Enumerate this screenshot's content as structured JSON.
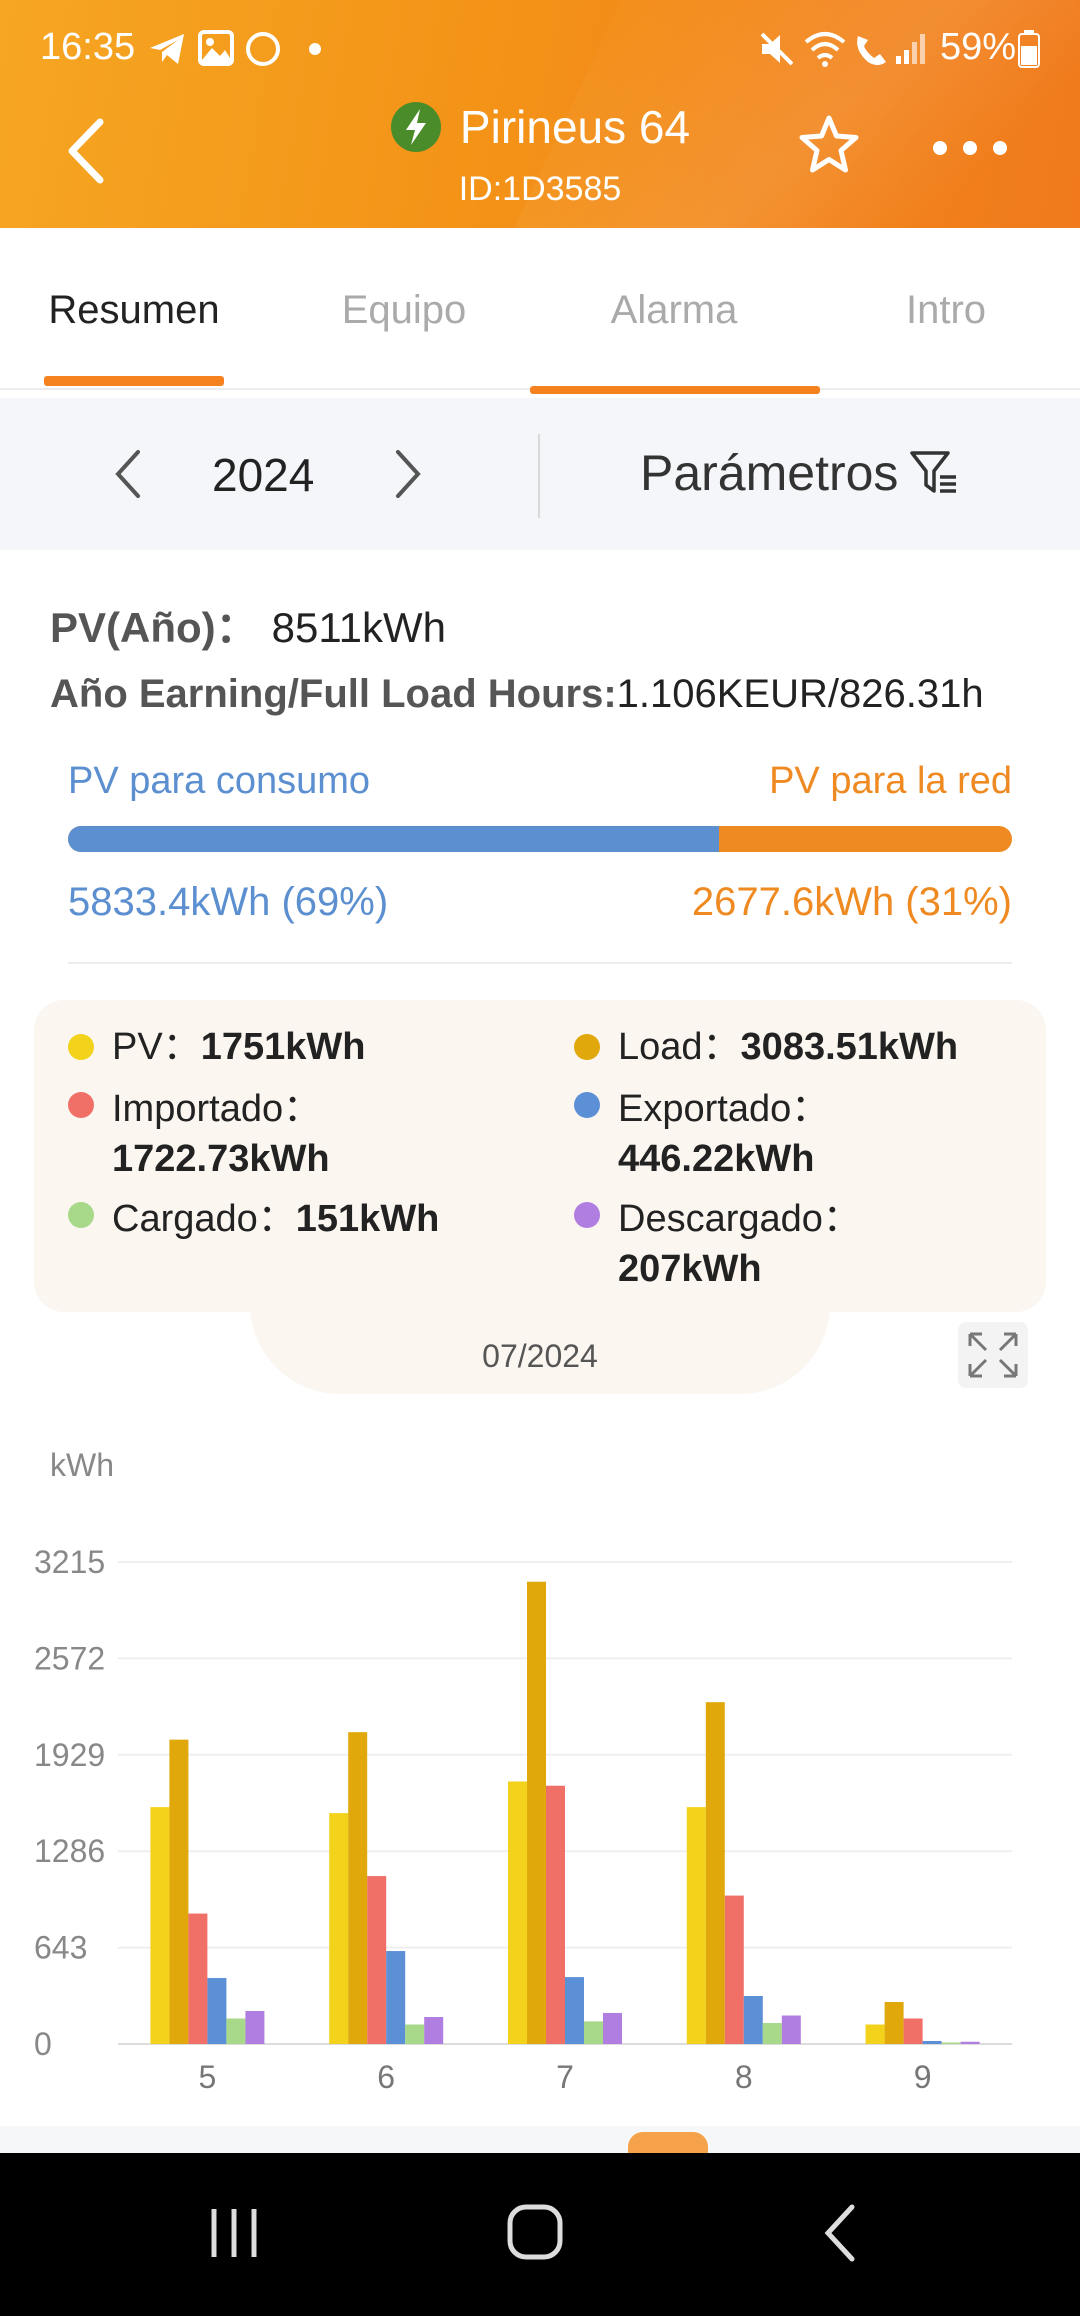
{
  "status_bar": {
    "time": "16:35",
    "battery": "59%"
  },
  "header": {
    "title": "Pirineus 64",
    "subtitle": "ID:1D3585"
  },
  "tabs": [
    {
      "label": "Resumen",
      "active": true
    },
    {
      "label": "Equipo",
      "active": false
    },
    {
      "label": "Alarma",
      "active": false
    },
    {
      "label": "Intro",
      "active": false
    }
  ],
  "period": {
    "year": "2024",
    "filter_label": "Parámetros"
  },
  "summary": {
    "pv_year_label": "PV(Año)：",
    "pv_year_value": "8511kWh",
    "earning_label": "Año Earning/Full Load Hours:",
    "earning_value": "1.106KEUR/826.31h",
    "self_consumption_label": "PV para consumo",
    "grid_label": "PV para la red",
    "self_consumption_value": "5833.4kWh (69%)",
    "grid_value": "2677.6kWh (31%)",
    "self_consumption_fraction": 0.69
  },
  "legend_card": {
    "items": [
      {
        "label": "PV：",
        "value": "1751kWh",
        "color": "#f2d21a"
      },
      {
        "label": "Load：",
        "value": "3083.51kWh",
        "color": "#e0a80a"
      },
      {
        "label": "Importado：",
        "value": "1722.73kWh",
        "color": "#f07068"
      },
      {
        "label": "Exportado：",
        "value": "446.22kWh",
        "color": "#5b8fd6"
      },
      {
        "label": "Cargado：",
        "value": "151kWh",
        "color": "#a8d88a"
      },
      {
        "label": "Descargado：",
        "value": "207kWh",
        "color": "#b07ee0"
      }
    ],
    "selected_period": "07/2024"
  },
  "chart_data": {
    "type": "bar",
    "ylabel": "kWh",
    "ylim": [
      0,
      3215
    ],
    "yticks": [
      "0",
      "643",
      "1286",
      "1929",
      "2572",
      "3215"
    ],
    "categories": [
      "5",
      "6",
      "7",
      "8",
      "9"
    ],
    "series": [
      {
        "name": "PV",
        "color": "#f2d21a",
        "values": [
          1580,
          1540,
          1751,
          1580,
          130
        ]
      },
      {
        "name": "Load",
        "color": "#e0a80a",
        "values": [
          2030,
          2080,
          3083.51,
          2280,
          280
        ]
      },
      {
        "name": "Importado",
        "color": "#f07068",
        "values": [
          870,
          1120,
          1722.73,
          990,
          170
        ]
      },
      {
        "name": "Exportado",
        "color": "#5b8fd6",
        "values": [
          440,
          620,
          446.22,
          320,
          20
        ]
      },
      {
        "name": "Cargado",
        "color": "#a8d88a",
        "values": [
          170,
          130,
          151,
          140,
          10
        ]
      },
      {
        "name": "Descargado",
        "color": "#b07ee0",
        "values": [
          220,
          180,
          207,
          190,
          15
        ]
      }
    ],
    "grid": true
  }
}
